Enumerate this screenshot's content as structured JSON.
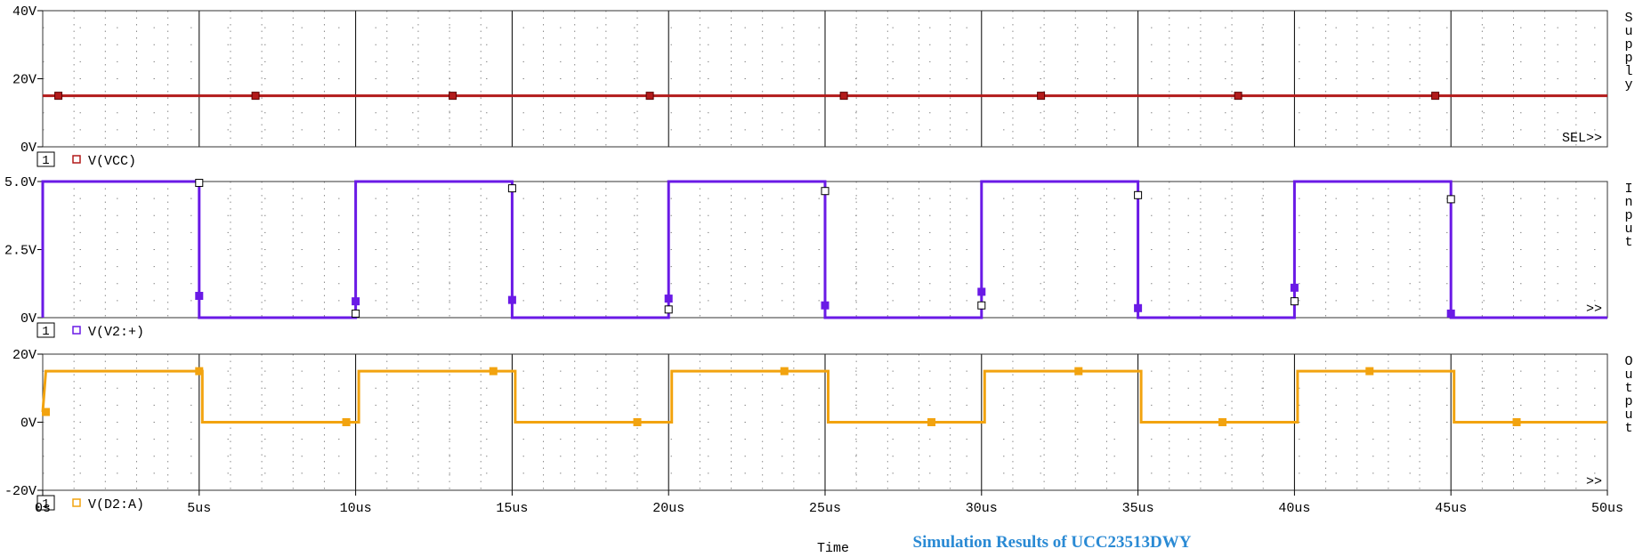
{
  "chart_data": [
    {
      "type": "line",
      "panel_label": "Supply",
      "ylim": [
        0,
        40
      ],
      "yticks": [
        "40V",
        "20V",
        "0V"
      ],
      "yticks_values": [
        40,
        20,
        0
      ],
      "more_label": "SEL>>",
      "legend": {
        "index": "1",
        "name": "V(VCC)"
      },
      "series": [
        {
          "name": "V(VCC)",
          "color": "#b21a1a",
          "x": [
            0,
            50
          ],
          "y": [
            15,
            15
          ],
          "marker_x": [
            0.5,
            6.8,
            13.1,
            19.4,
            25.6,
            31.9,
            38.2,
            44.5
          ]
        }
      ]
    },
    {
      "type": "line",
      "panel_label": "Input",
      "ylim": [
        0,
        5
      ],
      "yticks": [
        "5.0V",
        "2.5V",
        "0V"
      ],
      "yticks_values": [
        5,
        2.5,
        0
      ],
      "more_label": ">>",
      "legend": {
        "index": "1",
        "name": "V(V2:+)"
      },
      "series": [
        {
          "name": "V(V2:+)",
          "color": "#6a1ae6",
          "x": [
            0,
            0,
            5,
            5,
            10,
            10,
            15,
            15,
            20,
            20,
            25,
            25,
            30,
            30,
            35,
            35,
            40,
            40,
            45,
            45,
            50
          ],
          "y": [
            0,
            5,
            5,
            0,
            0,
            5,
            5,
            0,
            0,
            5,
            5,
            0,
            0,
            5,
            5,
            0,
            0,
            5,
            5,
            0,
            0
          ],
          "marker_points": [
            [
              5,
              0.8
            ],
            [
              10,
              0.6
            ],
            [
              15,
              0.65
            ],
            [
              20,
              0.7
            ],
            [
              25,
              0.45
            ],
            [
              30,
              0.95
            ],
            [
              35,
              0.35
            ],
            [
              40,
              1.1
            ],
            [
              45,
              0.15
            ]
          ],
          "open_marker_points": [
            [
              5,
              4.95
            ],
            [
              10,
              0.15
            ],
            [
              15,
              4.75
            ],
            [
              20,
              0.3
            ],
            [
              25,
              4.65
            ],
            [
              30,
              0.45
            ],
            [
              35,
              4.5
            ],
            [
              40,
              0.6
            ],
            [
              45,
              4.35
            ]
          ]
        }
      ]
    },
    {
      "type": "line",
      "panel_label": "Output",
      "ylim": [
        -20,
        20
      ],
      "yticks": [
        "20V",
        "0V",
        "-20V"
      ],
      "yticks_values": [
        20,
        0,
        -20
      ],
      "more_label": ">>",
      "legend": {
        "index": "1",
        "name": "V(D2:A)"
      },
      "xlim": [
        0,
        50
      ],
      "xticks": [
        "0s",
        "5us",
        "10us",
        "15us",
        "20us",
        "25us",
        "30us",
        "35us",
        "40us",
        "45us",
        "50us"
      ],
      "xticks_values": [
        0,
        5,
        10,
        15,
        20,
        25,
        30,
        35,
        40,
        45,
        50
      ],
      "xlabel": "Time",
      "series": [
        {
          "name": "V(D2:A)",
          "color": "#f2a30f",
          "x": [
            0,
            0.1,
            5.1,
            5.1,
            10.1,
            10.1,
            15.1,
            15.1,
            20.1,
            20.1,
            25.1,
            25.1,
            30.1,
            30.1,
            35.1,
            35.1,
            40.1,
            40.1,
            45.1,
            45.1,
            50
          ],
          "y": [
            3,
            15,
            15,
            0,
            0,
            15,
            15,
            0,
            0,
            15,
            15,
            0,
            0,
            15,
            15,
            0,
            0,
            15,
            15,
            0,
            0
          ],
          "marker_points": [
            [
              0.1,
              3
            ],
            [
              5,
              15
            ],
            [
              9.7,
              0
            ],
            [
              14.4,
              15
            ],
            [
              19,
              0
            ],
            [
              23.7,
              15
            ],
            [
              28.4,
              0
            ],
            [
              33.1,
              15
            ],
            [
              37.7,
              0
            ],
            [
              42.4,
              15
            ],
            [
              47.1,
              0
            ]
          ]
        }
      ]
    }
  ],
  "caption": "Simulation Results of UCC23513DWY",
  "colors": {
    "caption": "#2a8ad4",
    "frame": "#333333",
    "grid_major": "#000000",
    "grid_minor": "#888888"
  }
}
